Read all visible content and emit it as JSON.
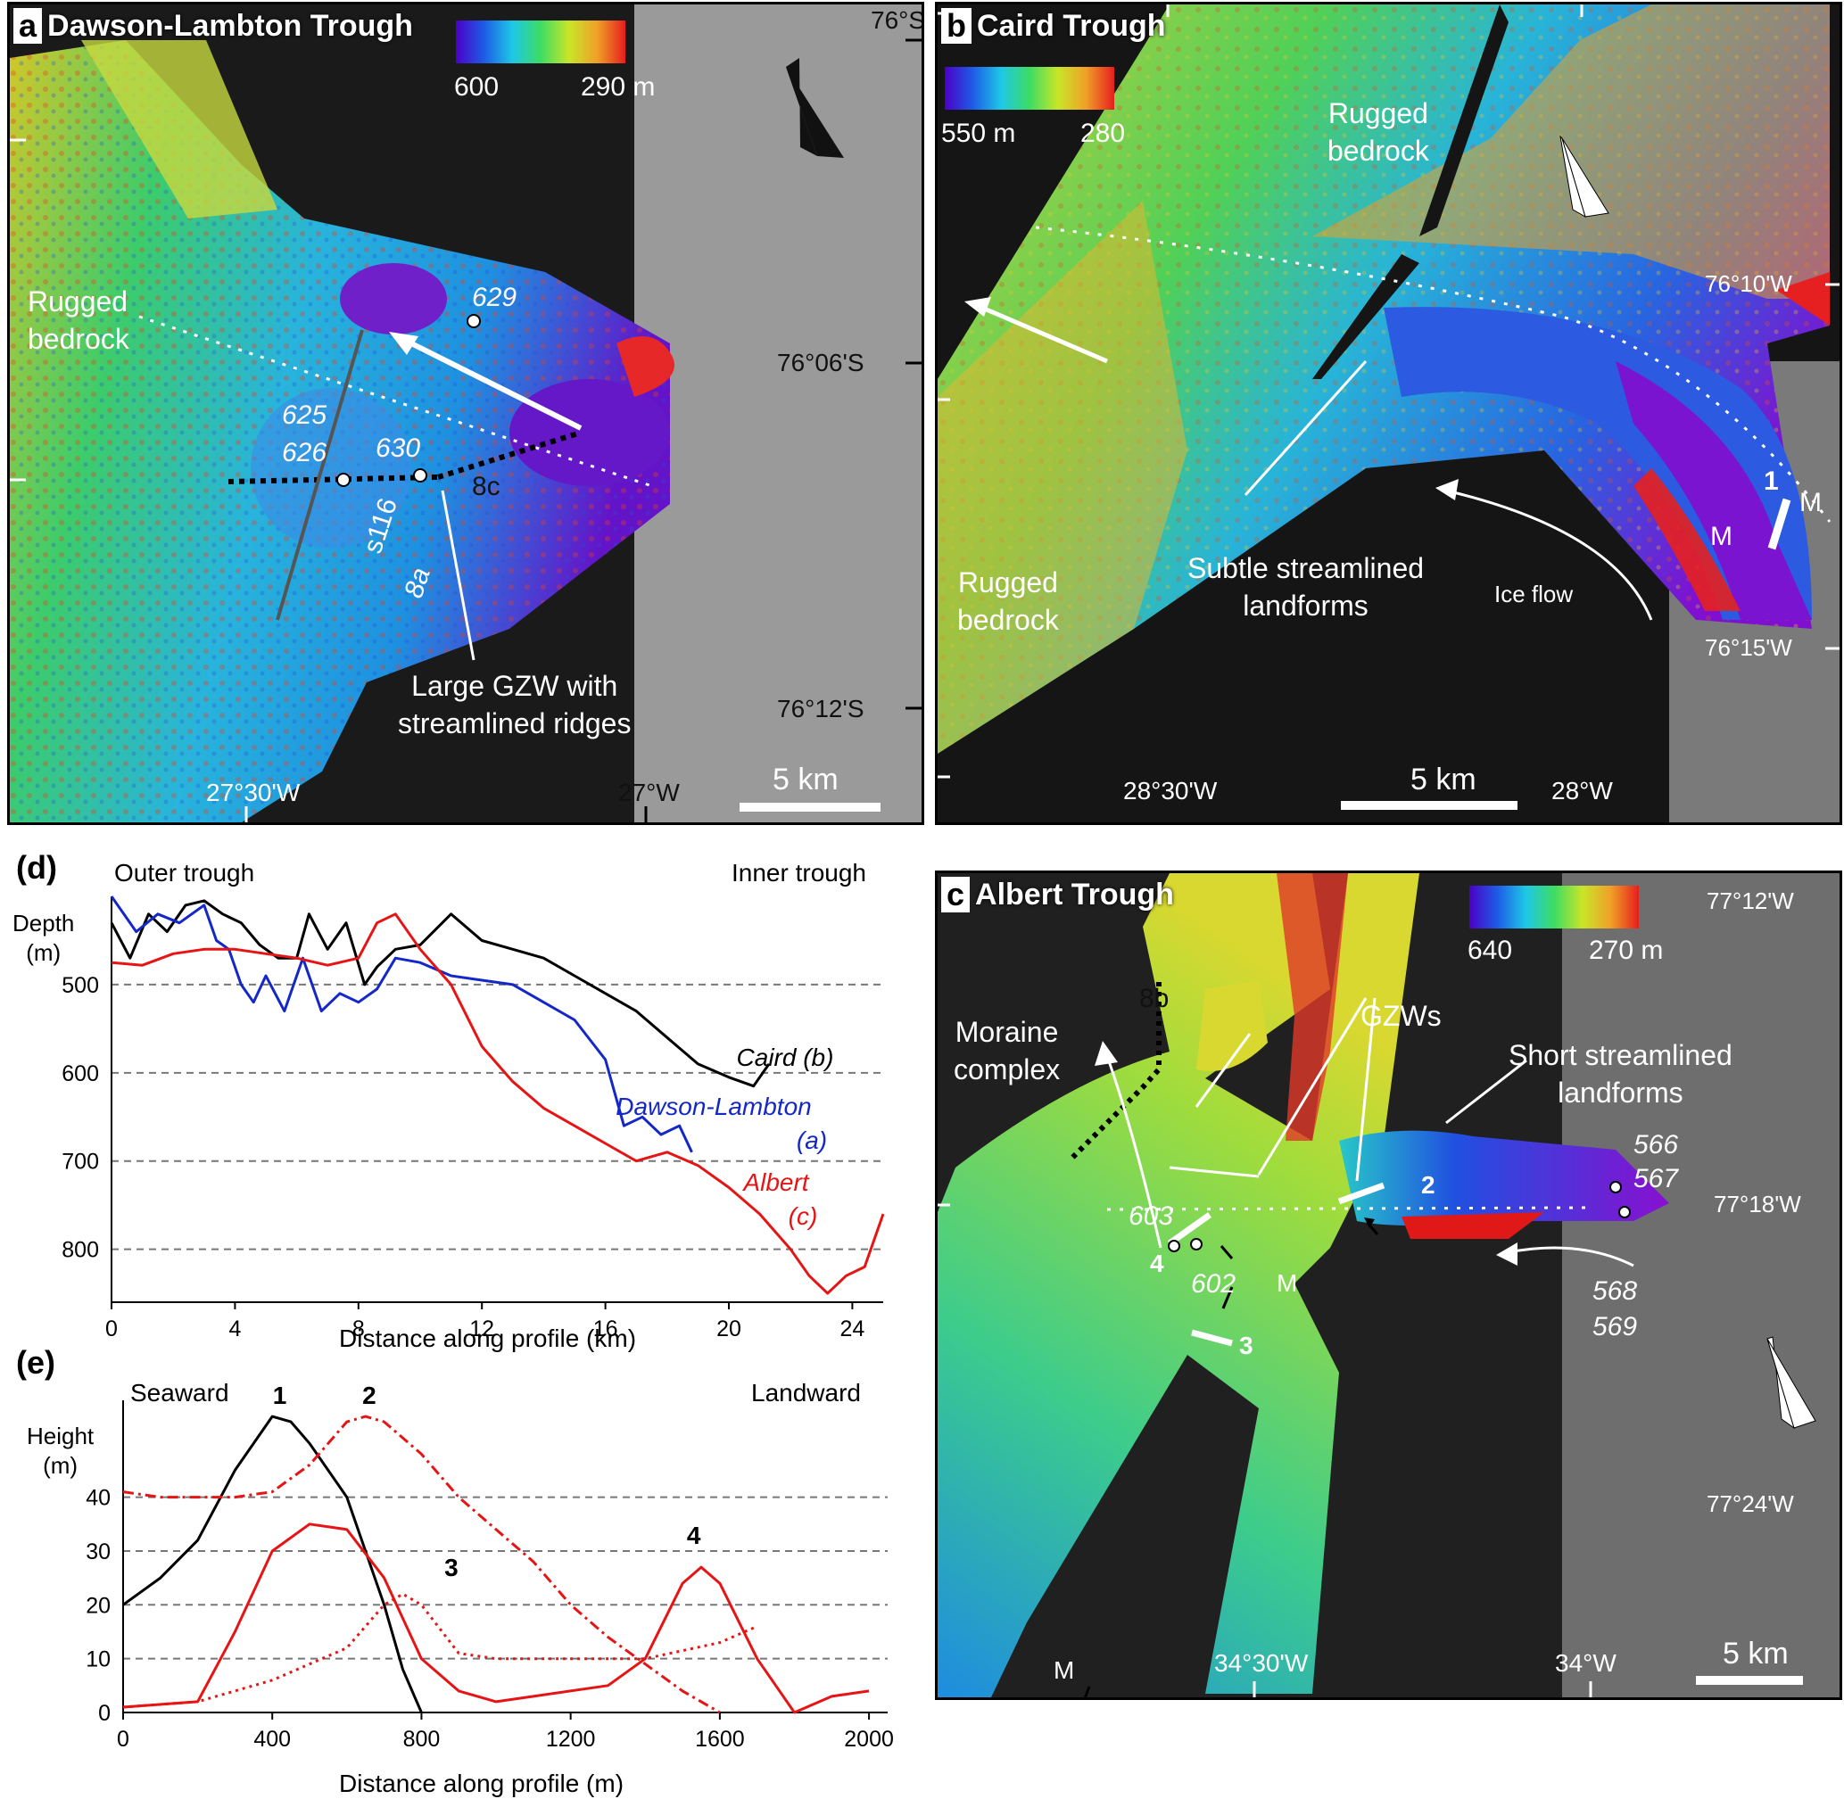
{
  "panel_a": {
    "letter": "a",
    "title": "Dawson-Lambton Trough",
    "colorbar_min": "600",
    "colorbar_max": "290 m",
    "lat_labels": [
      "76°S",
      "76°06'S",
      "76°12'S"
    ],
    "lon_labels": [
      "27°30'W",
      "27°W"
    ],
    "scale": "5 km",
    "feature_rugged": "Rugged\nbedrock",
    "feature_gzw": "Large GZW with\nstreamlined ridges",
    "cores": [
      "629",
      "625",
      "626",
      "630"
    ],
    "profile_labels": [
      "8c",
      "s116",
      "8a"
    ]
  },
  "panel_b": {
    "letter": "b",
    "title": "Caird Trough",
    "colorbar_min": "550 m",
    "colorbar_max": "280",
    "lat_labels": [
      "76°10'W",
      "76°15'W"
    ],
    "lon_labels": [
      "28°30'W",
      "28°W"
    ],
    "scale": "5 km",
    "rugged_top": "Rugged\nbedrock",
    "rugged_bottom": "Rugged\nbedrock",
    "streamlined": "Subtle streamlined\nlandforms",
    "ice_flow": "Ice flow",
    "markers": [
      "1",
      "M",
      "M"
    ]
  },
  "panel_c": {
    "letter": "c",
    "title": "Albert Trough",
    "colorbar_min": "640",
    "colorbar_max": "270 m",
    "lat_labels": [
      "77°12'W",
      "77°18'W",
      "77°24'W"
    ],
    "lon_labels": [
      "34°30'W",
      "34°W"
    ],
    "scale": "5 km",
    "moraine": "Moraine\ncomplex",
    "gzws": "GZWs",
    "short_streamlined": "Short streamlined\nlandforms",
    "profile_8b": "8b",
    "cores": [
      "566",
      "567",
      "568",
      "569",
      "603",
      "602"
    ],
    "markers": [
      "2",
      "3",
      "4",
      "M",
      "M"
    ]
  },
  "panel_d": {
    "letter": "(d)",
    "left_note": "Outer trough",
    "right_note": "Inner trough",
    "ylabel": "Depth\n(m)",
    "xlabel": "Distance along profile (km)",
    "legend": [
      {
        "name": "Caird",
        "tag": "(b)",
        "color": "#000000"
      },
      {
        "name": "Dawson-Lambton",
        "tag": "(a)",
        "color": "#1428c8"
      },
      {
        "name": "Albert",
        "tag": "(c)",
        "color": "#e61414"
      }
    ]
  },
  "panel_e": {
    "letter": "(e)",
    "left_note": "Seaward",
    "right_note": "Landward",
    "ylabel": "Height\n(m)",
    "xlabel": "Distance along profile (m)",
    "peak_labels": [
      "1",
      "2",
      "3",
      "4"
    ]
  },
  "chart_data": [
    {
      "type": "line",
      "title": "",
      "xlabel": "Distance along profile (km)",
      "ylabel": "Depth (m)",
      "xlim": [
        0,
        25
      ],
      "ylim": [
        400,
        860
      ],
      "y_inverted": true,
      "xticks": [
        0,
        4,
        8,
        12,
        16,
        20,
        24
      ],
      "yticks": [
        500,
        600,
        700,
        800
      ],
      "grid": "horizontal dashed",
      "series": [
        {
          "name": "Caird",
          "color": "#000000",
          "x": [
            0,
            0.6,
            1.2,
            1.8,
            2.4,
            3.0,
            3.6,
            4.2,
            4.8,
            5.4,
            6.0,
            6.4,
            7.0,
            7.6,
            8.2,
            8.6,
            9.2,
            10.0,
            11.0,
            12.0,
            13.0,
            14.0,
            15.0,
            16.0,
            17.0,
            18.0,
            19.0,
            20.0,
            20.8,
            21.3
          ],
          "y": [
            430,
            470,
            420,
            440,
            410,
            405,
            420,
            430,
            455,
            470,
            470,
            420,
            460,
            430,
            500,
            480,
            460,
            455,
            420,
            450,
            460,
            470,
            490,
            510,
            530,
            560,
            590,
            605,
            615,
            590
          ]
        },
        {
          "name": "Dawson-Lambton",
          "color": "#1428c8",
          "x": [
            0,
            0.8,
            1.5,
            2.2,
            3.0,
            3.4,
            3.8,
            4.2,
            4.6,
            5.0,
            5.6,
            6.2,
            6.8,
            7.4,
            8.0,
            8.6,
            9.2,
            10.0,
            11.0,
            12.0,
            13.0,
            14.0,
            15.0,
            16.0,
            16.6,
            17.2,
            17.8,
            18.4,
            18.8
          ],
          "y": [
            400,
            440,
            420,
            430,
            410,
            450,
            460,
            500,
            520,
            490,
            530,
            470,
            530,
            510,
            520,
            505,
            470,
            475,
            490,
            495,
            500,
            520,
            540,
            585,
            660,
            650,
            670,
            660,
            690
          ]
        },
        {
          "name": "Albert",
          "color": "#e61414",
          "x": [
            0,
            1,
            2,
            3,
            4,
            5,
            6,
            7,
            8,
            8.6,
            9.2,
            10,
            11,
            12,
            13,
            14,
            15,
            16,
            17,
            18,
            19,
            20,
            21,
            22,
            22.6,
            23.2,
            23.8,
            24.4,
            25.0
          ],
          "y": [
            475,
            478,
            465,
            460,
            460,
            465,
            470,
            478,
            470,
            430,
            420,
            460,
            500,
            570,
            610,
            640,
            660,
            680,
            700,
            690,
            705,
            730,
            760,
            800,
            830,
            850,
            830,
            820,
            760
          ]
        }
      ]
    },
    {
      "type": "line",
      "title": "",
      "xlabel": "Distance along profile (m)",
      "ylabel": "Height (m)",
      "xlim": [
        0,
        2050
      ],
      "ylim": [
        0,
        58
      ],
      "xticks": [
        0,
        400,
        800,
        1200,
        1600,
        2000
      ],
      "yticks": [
        0,
        10,
        20,
        30,
        40
      ],
      "grid": "horizontal dashed",
      "series": [
        {
          "name": "1",
          "color": "#000000",
          "style": "solid",
          "x": [
            0,
            100,
            200,
            300,
            400,
            450,
            500,
            600,
            700,
            750,
            800
          ],
          "y": [
            20,
            25,
            32,
            45,
            55,
            54,
            50,
            40,
            20,
            8,
            0
          ]
        },
        {
          "name": "2",
          "color": "#e61414",
          "style": "dashdot",
          "x": [
            0,
            100,
            200,
            300,
            400,
            500,
            600,
            650,
            700,
            800,
            900,
            1000,
            1100,
            1200,
            1300,
            1400,
            1500,
            1600
          ],
          "y": [
            41,
            40,
            40,
            40,
            41,
            46,
            54,
            55,
            54,
            48,
            40,
            34,
            28,
            20,
            14,
            9,
            4,
            0
          ]
        },
        {
          "name": "3",
          "color": "#e61414",
          "style": "dotted",
          "x": [
            0,
            200,
            400,
            600,
            700,
            750,
            800,
            900,
            1000,
            1200,
            1400,
            1600,
            1700
          ],
          "y": [
            1,
            2,
            6,
            12,
            20,
            22,
            20,
            11,
            10,
            10,
            10,
            13,
            16
          ]
        },
        {
          "name": "4",
          "color": "#e61414",
          "style": "solid",
          "x": [
            0,
            200,
            300,
            400,
            500,
            600,
            700,
            800,
            900,
            1000,
            1100,
            1300,
            1400,
            1500,
            1550,
            1600,
            1700,
            1800,
            1900,
            2000
          ],
          "y": [
            1,
            2,
            15,
            30,
            35,
            34,
            25,
            10,
            4,
            2,
            3,
            5,
            10,
            24,
            27,
            24,
            10,
            0,
            3,
            4
          ]
        }
      ]
    }
  ]
}
